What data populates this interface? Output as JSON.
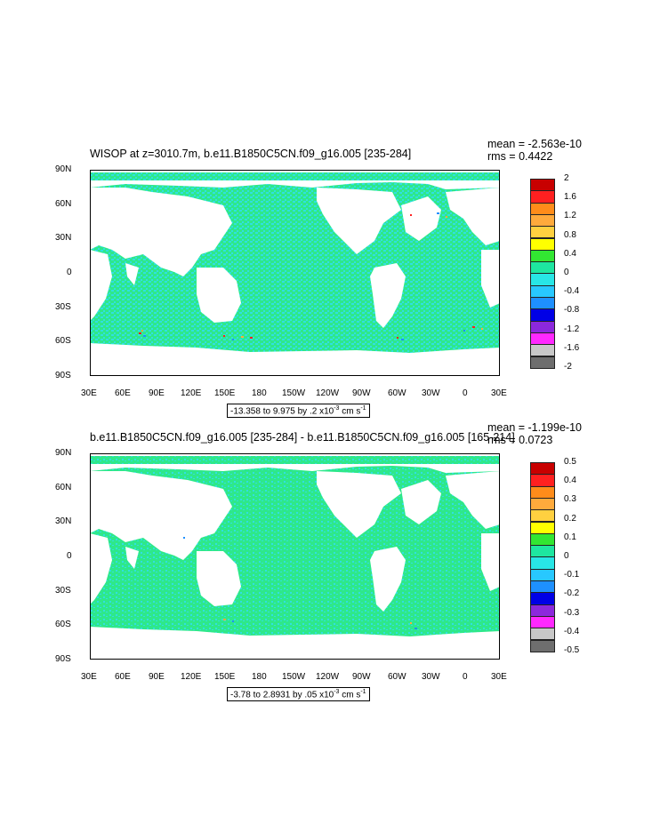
{
  "panels": [
    {
      "title": "WISOP at z=3010.7m, b.e11.B1850C5CN.f09_g16.005 [235-284]",
      "mean": "mean = -2.563e-10",
      "rms": "rms = 0.4422",
      "range_main": "-13.358 to 9.975 by .2 x10",
      "range_exp": "-3",
      "range_units": " cm s",
      "range_units_exp": "-1",
      "colorbar_labels": [
        "2",
        "1.6",
        "1.2",
        "0.8",
        "0.4",
        "0",
        "-0.4",
        "-0.8",
        "-1.2",
        "-1.6",
        "-2"
      ]
    },
    {
      "title": "b.e11.B1850C5CN.f09_g16.005 [235-284] - b.e11.B1850C5CN.f09_g16.005 [165-214]",
      "mean": "mean = -1.199e-10",
      "rms": "rms = 0.0723",
      "range_main": "-3.78 to 2.8931 by .05 x10",
      "range_exp": "-3",
      "range_units": " cm s",
      "range_units_exp": "-1",
      "colorbar_labels": [
        "0.5",
        "0.4",
        "0.3",
        "0.2",
        "0.1",
        "0",
        "-0.1",
        "-0.2",
        "-0.3",
        "-0.4",
        "-0.5"
      ]
    }
  ],
  "lat_labels": [
    "90N",
    "60N",
    "30N",
    "0",
    "30S",
    "60S",
    "90S"
  ],
  "lon_labels": [
    "30E",
    "60E",
    "90E",
    "120E",
    "150E",
    "180",
    "150W",
    "120W",
    "90W",
    "60W",
    "30W",
    "0",
    "30E"
  ],
  "colors": {
    "ocean_main": "#2ee88a",
    "ocean_alt": "#30e0e0",
    "land": "#ffffff",
    "colorbar": [
      "#c80000",
      "#ff2020",
      "#ff8c1a",
      "#ffaa3c",
      "#ffd040",
      "#ffff00",
      "#32e632",
      "#1ee6a0",
      "#28e6e6",
      "#28c8ff",
      "#1e90ff",
      "#0000e6",
      "#8c28dc",
      "#ff28ff",
      "#c8c8c8",
      "#6e6e6e"
    ]
  }
}
